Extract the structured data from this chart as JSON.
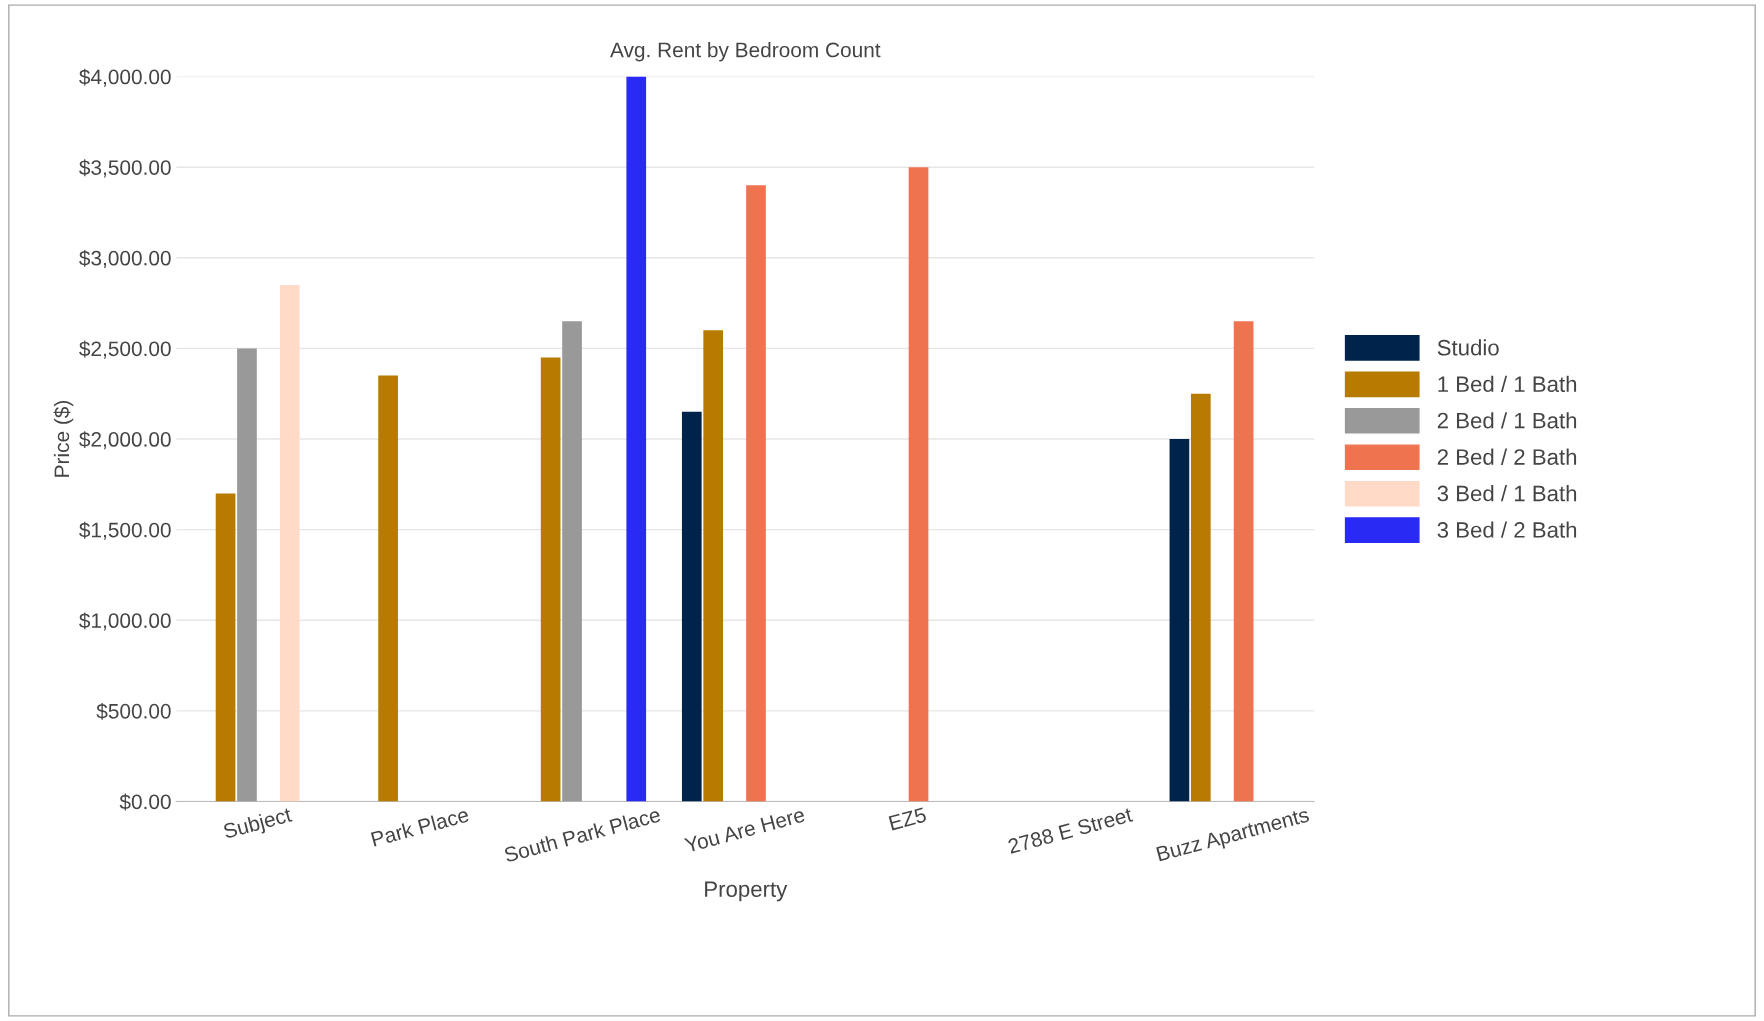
{
  "chart_data": {
    "type": "bar",
    "title": "Avg. Rent by Bedroom Count",
    "xlabel": "Property",
    "ylabel": "Price ($)",
    "categories": [
      "Subject",
      "Park Place",
      "South Park Place",
      "You Are Here",
      "EZ5",
      "2788 E Street",
      "Buzz Apartments"
    ],
    "series": [
      {
        "name": "Studio",
        "color": "#00234b",
        "values": [
          null,
          null,
          null,
          2150,
          null,
          null,
          2000
        ]
      },
      {
        "name": "1 Bed / 1 Bath",
        "color": "#b77b00",
        "values": [
          1700,
          2350,
          2450,
          2600,
          null,
          null,
          2250
        ]
      },
      {
        "name": "2 Bed / 1 Bath",
        "color": "#999999",
        "values": [
          2500,
          null,
          2650,
          null,
          null,
          null,
          null
        ]
      },
      {
        "name": "2 Bed / 2 Bath",
        "color": "#f07350",
        "values": [
          null,
          null,
          null,
          3400,
          3500,
          null,
          2650
        ]
      },
      {
        "name": "3 Bed / 1 Bath",
        "color": "#ffdac6",
        "values": [
          2850,
          null,
          null,
          null,
          null,
          null,
          null
        ]
      },
      {
        "name": "3 Bed / 2 Bath",
        "color": "#2a2af5",
        "values": [
          null,
          null,
          4000,
          null,
          null,
          null,
          null
        ]
      }
    ],
    "ylim": [
      0,
      4000
    ],
    "yticks": [
      {
        "value": 0,
        "label": "$0.00"
      },
      {
        "value": 500,
        "label": "$500.00"
      },
      {
        "value": 1000,
        "label": "$1,000.00"
      },
      {
        "value": 1500,
        "label": "$1,500.00"
      },
      {
        "value": 2000,
        "label": "$2,000.00"
      },
      {
        "value": 2500,
        "label": "$2,500.00"
      },
      {
        "value": 3000,
        "label": "$3,000.00"
      },
      {
        "value": 3500,
        "label": "$3,500.00"
      },
      {
        "value": 4000,
        "label": "$4,000.00"
      }
    ],
    "grid": "y",
    "legend": "right"
  }
}
